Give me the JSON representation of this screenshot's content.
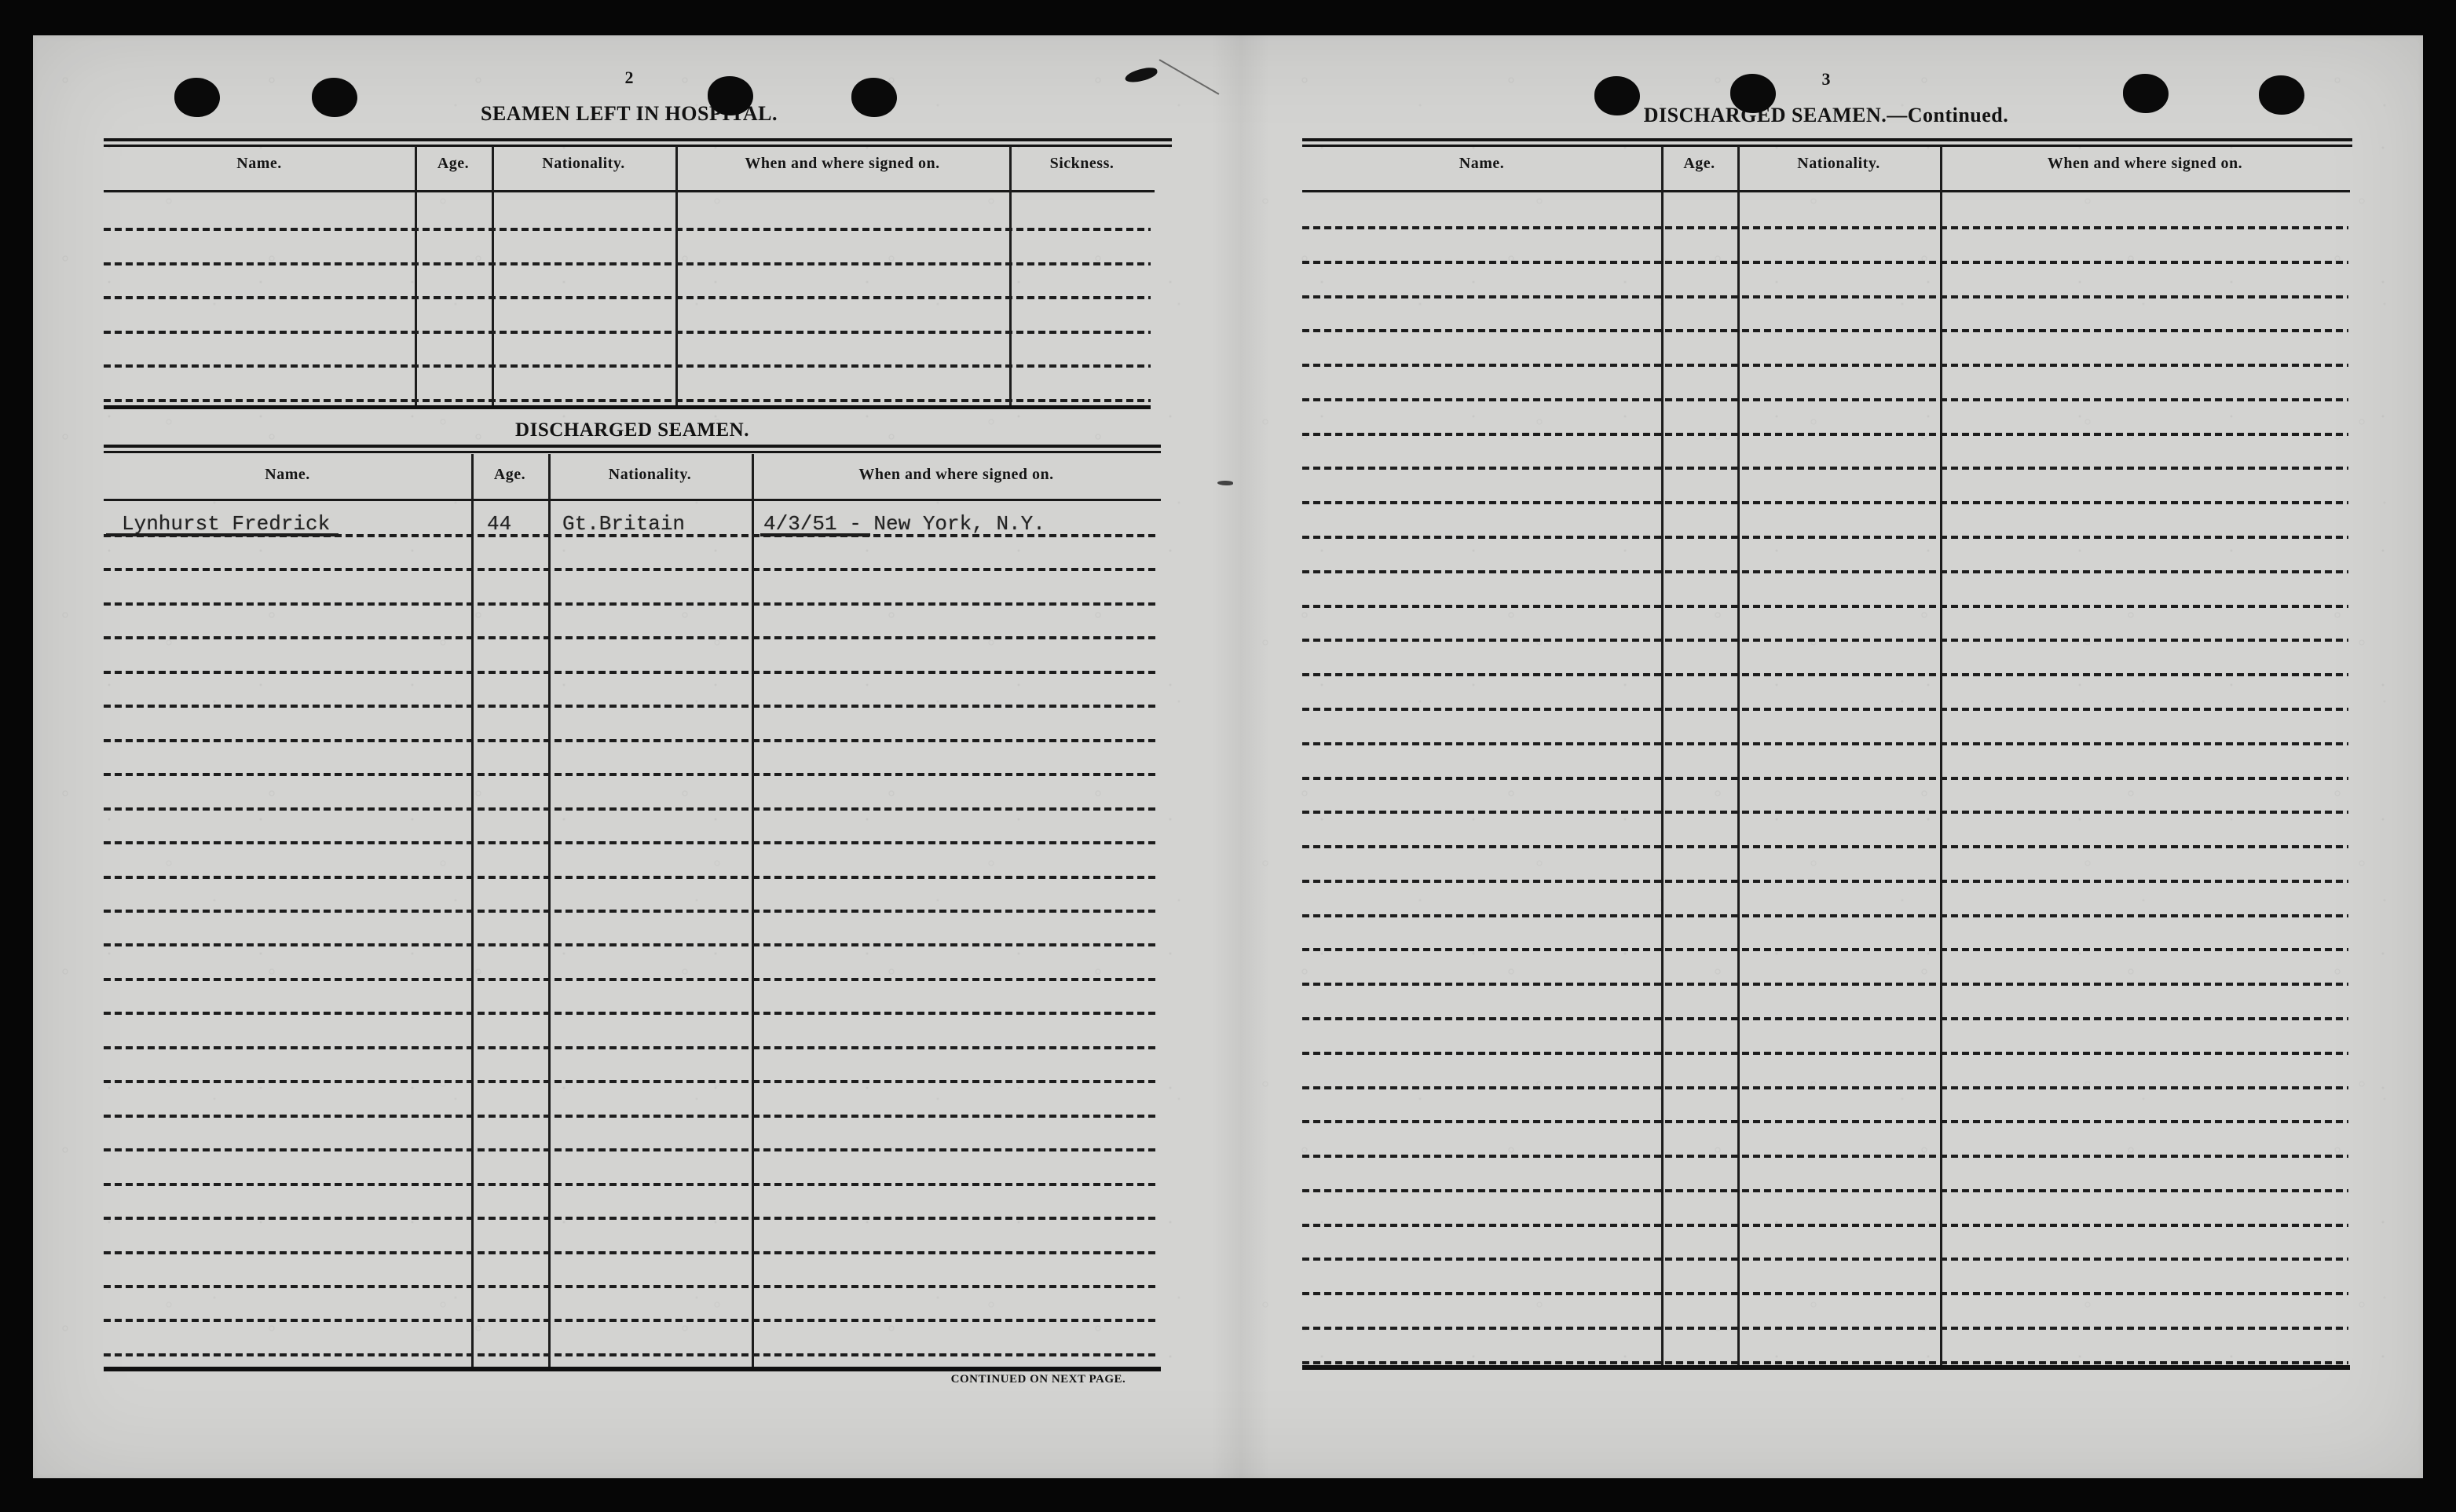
{
  "colors": {
    "paper": "#d3d3d1",
    "ink": "#161616",
    "scan_border": "#060606"
  },
  "left_page": {
    "page_number": "2",
    "title": "SEAMEN LEFT IN HOSPITAL.",
    "hospital_table": {
      "headers": [
        "Name.",
        "Age.",
        "Nationality.",
        "When and where signed on.",
        "Sickness."
      ],
      "ruled_row_count": 6
    },
    "discharged_section_title": "DISCHARGED SEAMEN.",
    "discharged_table": {
      "headers": [
        "Name.",
        "Age.",
        "Nationality.",
        "When and where signed on."
      ],
      "entries": [
        {
          "name": "Lynhurst Fredrick",
          "age": "44",
          "nationality": "Gt.Britain",
          "signed_on": "4/3/51 - New York, N.Y."
        }
      ],
      "ruled_row_count": 25
    },
    "footer_note": "CONTINUED ON NEXT PAGE."
  },
  "right_page": {
    "page_number": "3",
    "title": "DISCHARGED SEAMEN.—Continued.",
    "table": {
      "headers": [
        "Name.",
        "Age.",
        "Nationality.",
        "When and where signed on."
      ],
      "ruled_row_count": 34
    }
  }
}
